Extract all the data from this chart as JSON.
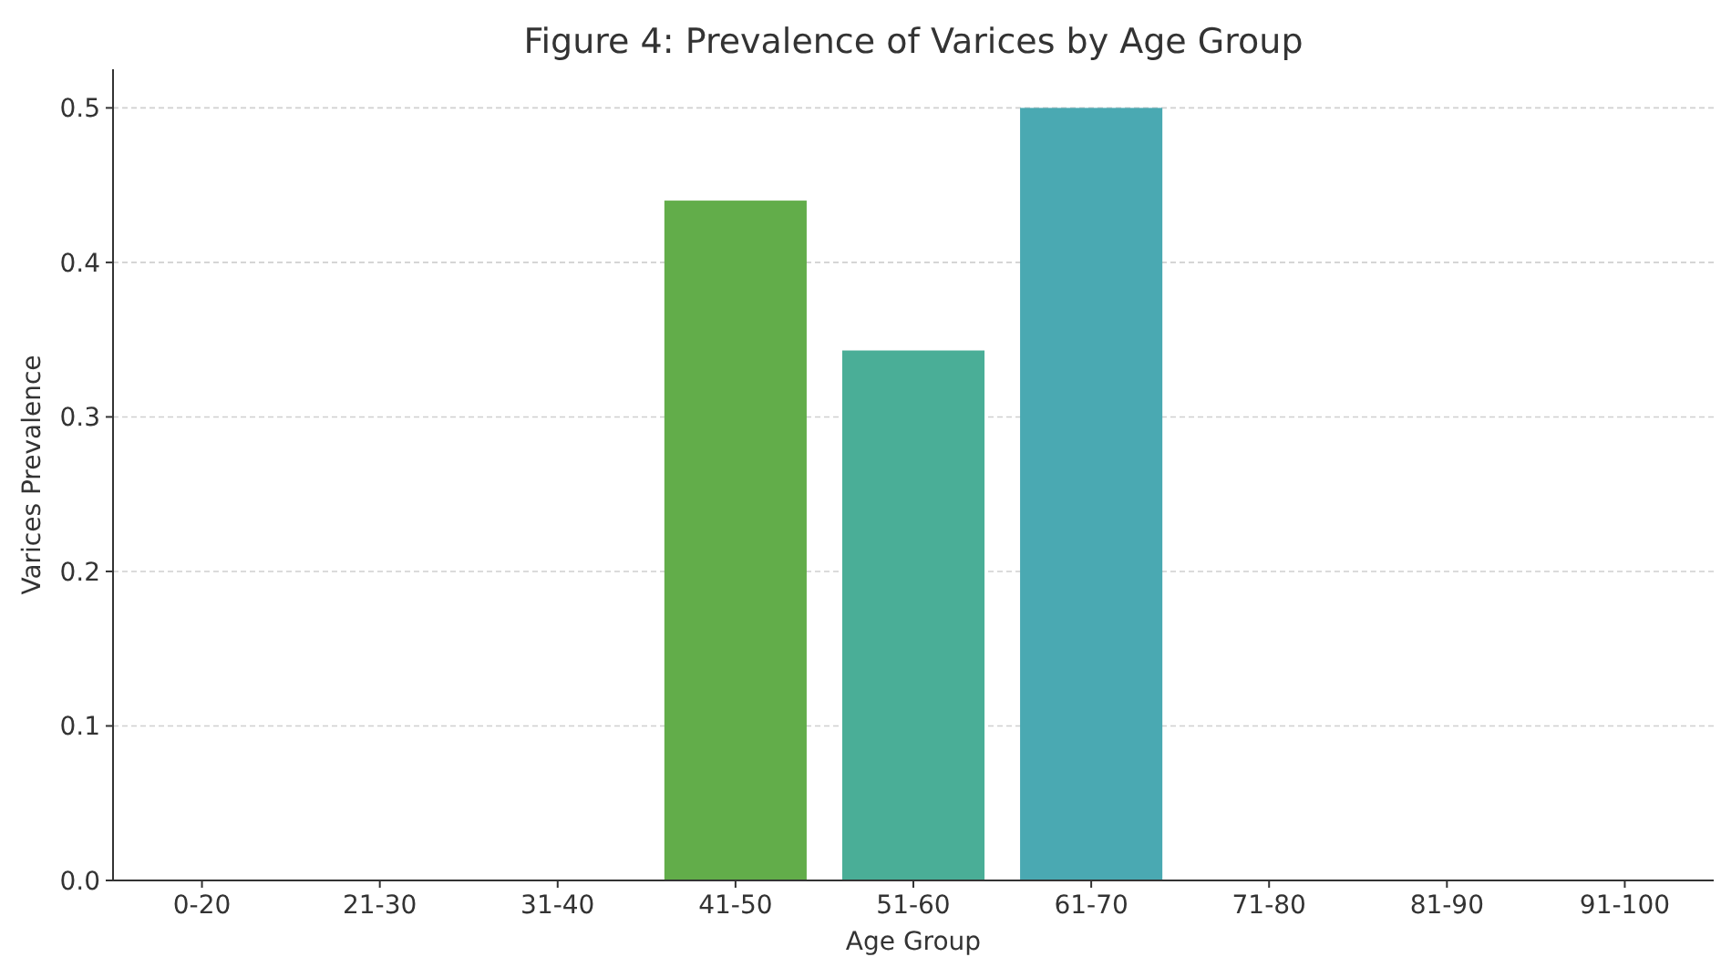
{
  "chart_data": {
    "type": "bar",
    "title": "Figure 4: Prevalence of Varices by Age Group",
    "xlabel": "Age Group",
    "ylabel": "Varices Prevalence",
    "categories": [
      "0-20",
      "21-30",
      "31-40",
      "41-50",
      "51-60",
      "61-70",
      "71-80",
      "81-90",
      "91-100"
    ],
    "values": [
      0,
      0,
      0,
      0.44,
      0.343,
      0.5,
      0,
      0,
      0
    ],
    "colors": [
      "#3d6ea3",
      "#3c83a0",
      "#3a979c",
      "#62ad4a",
      "#4aae97",
      "#4aa9b2",
      "#4a9cc0",
      "#4a8fc6",
      "#4a82cc"
    ],
    "ylim": [
      0,
      0.525
    ],
    "yticks": [
      {
        "value": 0,
        "label": "0.0"
      },
      {
        "value": 0.1,
        "label": "0.1"
      },
      {
        "value": 0.2,
        "label": "0.2"
      },
      {
        "value": 0.3,
        "label": "0.3"
      },
      {
        "value": 0.4,
        "label": "0.4"
      },
      {
        "value": 0.5,
        "label": "0.5"
      }
    ],
    "grid": "y"
  }
}
